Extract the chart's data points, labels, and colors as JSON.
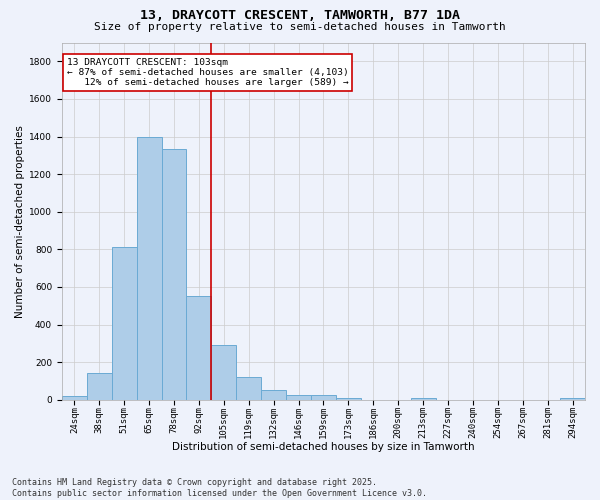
{
  "title": "13, DRAYCOTT CRESCENT, TAMWORTH, B77 1DA",
  "subtitle": "Size of property relative to semi-detached houses in Tamworth",
  "xlabel": "Distribution of semi-detached houses by size in Tamworth",
  "ylabel": "Number of semi-detached properties",
  "categories": [
    "24sqm",
    "38sqm",
    "51sqm",
    "65sqm",
    "78sqm",
    "92sqm",
    "105sqm",
    "119sqm",
    "132sqm",
    "146sqm",
    "159sqm",
    "173sqm",
    "186sqm",
    "200sqm",
    "213sqm",
    "227sqm",
    "240sqm",
    "254sqm",
    "267sqm",
    "281sqm",
    "294sqm"
  ],
  "values": [
    20,
    145,
    810,
    1400,
    1335,
    550,
    290,
    120,
    50,
    25,
    25,
    10,
    0,
    0,
    10,
    0,
    0,
    0,
    0,
    0,
    10
  ],
  "bar_color": "#aecde8",
  "bar_edge_color": "#6aaad4",
  "property_line_x": 6.5,
  "annotation_text": "13 DRAYCOTT CRESCENT: 103sqm\n← 87% of semi-detached houses are smaller (4,103)\n   12% of semi-detached houses are larger (589) →",
  "annotation_box_color": "#ffffff",
  "annotation_box_edge_color": "#cc0000",
  "line_color": "#cc0000",
  "ylim": [
    0,
    1900
  ],
  "yticks": [
    0,
    200,
    400,
    600,
    800,
    1000,
    1200,
    1400,
    1600,
    1800
  ],
  "background_color": "#eef2fb",
  "grid_color": "#cccccc",
  "footer": "Contains HM Land Registry data © Crown copyright and database right 2025.\nContains public sector information licensed under the Open Government Licence v3.0.",
  "title_fontsize": 9.5,
  "subtitle_fontsize": 8,
  "axis_label_fontsize": 7.5,
  "tick_fontsize": 6.5,
  "annotation_fontsize": 6.8,
  "footer_fontsize": 6.0
}
